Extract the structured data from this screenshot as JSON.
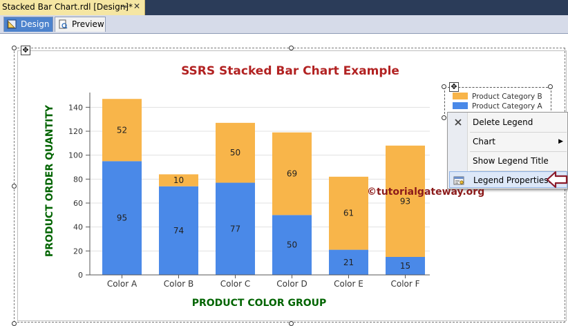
{
  "doc_tab": {
    "title": "Stacked Bar Chart.rdl [Design]*",
    "pin_glyph": "⊸",
    "close_glyph": "✕",
    "icons": [
      "pin-icon",
      "close-icon"
    ]
  },
  "view_tabs": [
    {
      "label": "Design",
      "icon": "design-ruler-icon",
      "active": true
    },
    {
      "label": "Preview",
      "icon": "preview-page-icon",
      "active": false
    }
  ],
  "handles": {
    "move_glyph": "✥"
  },
  "chart_data": {
    "type": "bar",
    "stacked": true,
    "title": "SSRS Stacked Bar Chart Example",
    "xlabel": "PRODUCT COLOR GROUP",
    "ylabel": "PRODUCT ORDER QUANTITY",
    "ylim": [
      0,
      150
    ],
    "yticks": [
      0,
      20,
      40,
      60,
      80,
      100,
      120,
      140
    ],
    "categories": [
      "Color A",
      "Color B",
      "Color C",
      "Color D",
      "Color E",
      "Color F"
    ],
    "series": [
      {
        "name": "Product Category A",
        "color": "#4a89e8",
        "values": [
          95,
          74,
          77,
          50,
          21,
          15
        ]
      },
      {
        "name": "Product Category B",
        "color": "#f8b54a",
        "values": [
          52,
          10,
          50,
          69,
          61,
          93
        ]
      }
    ],
    "grid": true,
    "legend_position": "top-right",
    "title_color": "#b22222",
    "axis_label_color": "#006400"
  },
  "legend": {
    "entries": [
      {
        "label": "Product Category B",
        "color": "#f8b54a"
      },
      {
        "label": "Product Category A",
        "color": "#4a89e8"
      }
    ]
  },
  "context_menu": {
    "items": [
      {
        "label": "Delete Legend",
        "icon": "delete-x-icon"
      },
      {
        "label": "Chart",
        "submenu_glyph": "▶"
      },
      {
        "label": "Show Legend Title"
      },
      {
        "label": "Legend Properties...",
        "icon": "properties-icon",
        "highlighted": true
      }
    ]
  },
  "watermark": "©tutorialgateway.org"
}
